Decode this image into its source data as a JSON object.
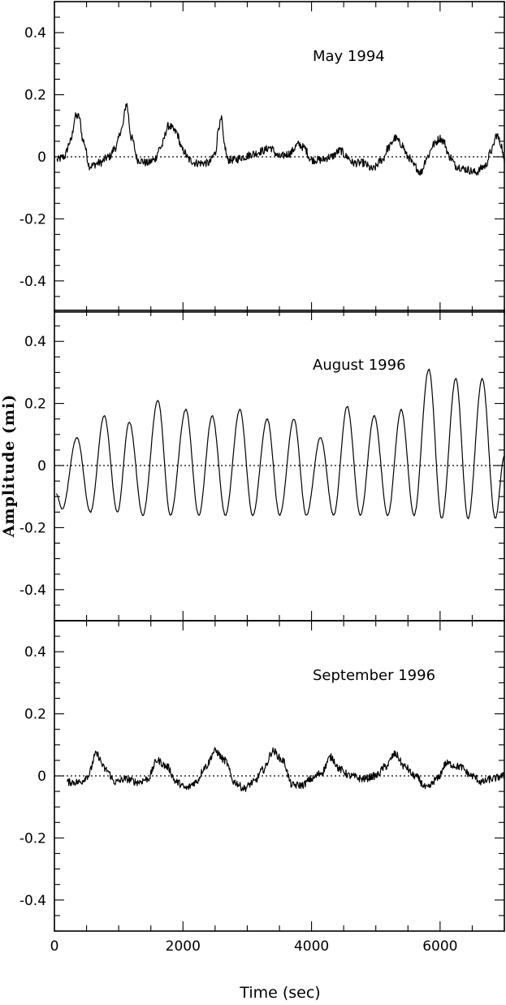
{
  "chart_data": {
    "type": "line",
    "xlabel": "Time (sec)",
    "ylabel": "Amplitude (mi)",
    "xlim": [
      0,
      7000
    ],
    "ylim": [
      -0.5,
      0.5
    ],
    "x_ticks": [
      0,
      2000,
      4000,
      6000
    ],
    "x_tick_labels": [
      "0",
      "2000",
      "4000",
      "6000"
    ],
    "y_ticks": [
      0.4,
      0.2,
      0,
      -0.2,
      -0.4
    ],
    "y_tick_labels": [
      "0.4",
      "0.2",
      "0",
      "-0.2",
      "-0.4"
    ],
    "zero_reference_line": "dotted",
    "grid": false,
    "line_color": "#000000",
    "panels": [
      {
        "title": "May 1994",
        "x": [
          40,
          150,
          250,
          330,
          380,
          450,
          550,
          700,
          850,
          950,
          1050,
          1120,
          1200,
          1300,
          1450,
          1550,
          1650,
          1780,
          1890,
          2000,
          2100,
          2200,
          2300,
          2400,
          2500,
          2560,
          2600,
          2640,
          2700,
          2800,
          2950,
          3100,
          3250,
          3350,
          3500,
          3650,
          3800,
          3880,
          4000,
          4150,
          4300,
          4450,
          4550,
          4650,
          4800,
          4950,
          5100,
          5200,
          5300,
          5400,
          5500,
          5600,
          5700,
          5800,
          5900,
          6000,
          6050,
          6150,
          6250,
          6400,
          6550,
          6700,
          6800,
          6880,
          6950,
          7000
        ],
        "values": [
          -0.01,
          0.0,
          0.05,
          0.13,
          0.13,
          0.05,
          -0.03,
          -0.02,
          0.0,
          0.03,
          0.09,
          0.17,
          0.06,
          -0.01,
          -0.02,
          -0.01,
          0.03,
          0.1,
          0.08,
          0.02,
          -0.01,
          -0.02,
          -0.02,
          -0.02,
          0.01,
          0.1,
          0.12,
          0.04,
          -0.01,
          -0.01,
          0.0,
          0.01,
          0.02,
          0.03,
          0.0,
          0.01,
          0.04,
          0.03,
          -0.01,
          -0.01,
          0.0,
          0.02,
          0.0,
          -0.02,
          -0.02,
          -0.04,
          -0.01,
          0.03,
          0.06,
          0.04,
          0.0,
          -0.03,
          -0.05,
          0.0,
          0.04,
          0.06,
          0.05,
          0.0,
          -0.03,
          -0.04,
          -0.05,
          -0.03,
          0.02,
          0.07,
          0.04,
          -0.02
        ],
        "noise": 0.013
      },
      {
        "title": "August 1996",
        "x": [
          30,
          120,
          350,
          560,
          775,
          980,
          1165,
          1375,
          1610,
          1805,
          2045,
          2245,
          2455,
          2660,
          2885,
          3085,
          3310,
          3505,
          3725,
          3920,
          4140,
          4345,
          4555,
          4760,
          4975,
          5185,
          5395,
          5595,
          5825,
          6025,
          6245,
          6435,
          6655,
          6860,
          7000
        ],
        "values": [
          -0.09,
          -0.14,
          0.09,
          -0.15,
          0.16,
          -0.15,
          0.14,
          -0.16,
          0.21,
          -0.16,
          0.18,
          -0.16,
          0.16,
          -0.16,
          0.18,
          -0.16,
          0.15,
          -0.16,
          0.15,
          -0.16,
          0.09,
          -0.16,
          0.19,
          -0.16,
          0.16,
          -0.16,
          0.18,
          -0.16,
          0.31,
          -0.17,
          0.28,
          -0.17,
          0.28,
          -0.17,
          0.03
        ],
        "noise": 0.002
      },
      {
        "title": "September 1996",
        "x": [
          200,
          400,
          520,
          650,
          800,
          950,
          1100,
          1300,
          1450,
          1600,
          1750,
          1900,
          2050,
          2200,
          2350,
          2500,
          2650,
          2800,
          2950,
          3100,
          3250,
          3400,
          3550,
          3700,
          3850,
          4000,
          4150,
          4300,
          4450,
          4600,
          4800,
          5000,
          5150,
          5300,
          5450,
          5600,
          5800,
          5950,
          6100,
          6300,
          6500,
          6650,
          6800,
          7000
        ],
        "values": [
          -0.02,
          -0.02,
          0.0,
          0.07,
          0.02,
          -0.02,
          -0.01,
          -0.02,
          -0.01,
          0.05,
          0.03,
          -0.02,
          -0.04,
          -0.02,
          0.03,
          0.08,
          0.05,
          -0.02,
          -0.04,
          -0.02,
          0.02,
          0.08,
          0.05,
          -0.03,
          -0.03,
          -0.01,
          0.01,
          0.06,
          0.02,
          0.0,
          -0.01,
          0.0,
          0.03,
          0.07,
          0.03,
          0.0,
          -0.04,
          -0.01,
          0.04,
          0.03,
          0.0,
          -0.02,
          -0.01,
          0.0
        ],
        "noise": 0.012
      }
    ]
  }
}
